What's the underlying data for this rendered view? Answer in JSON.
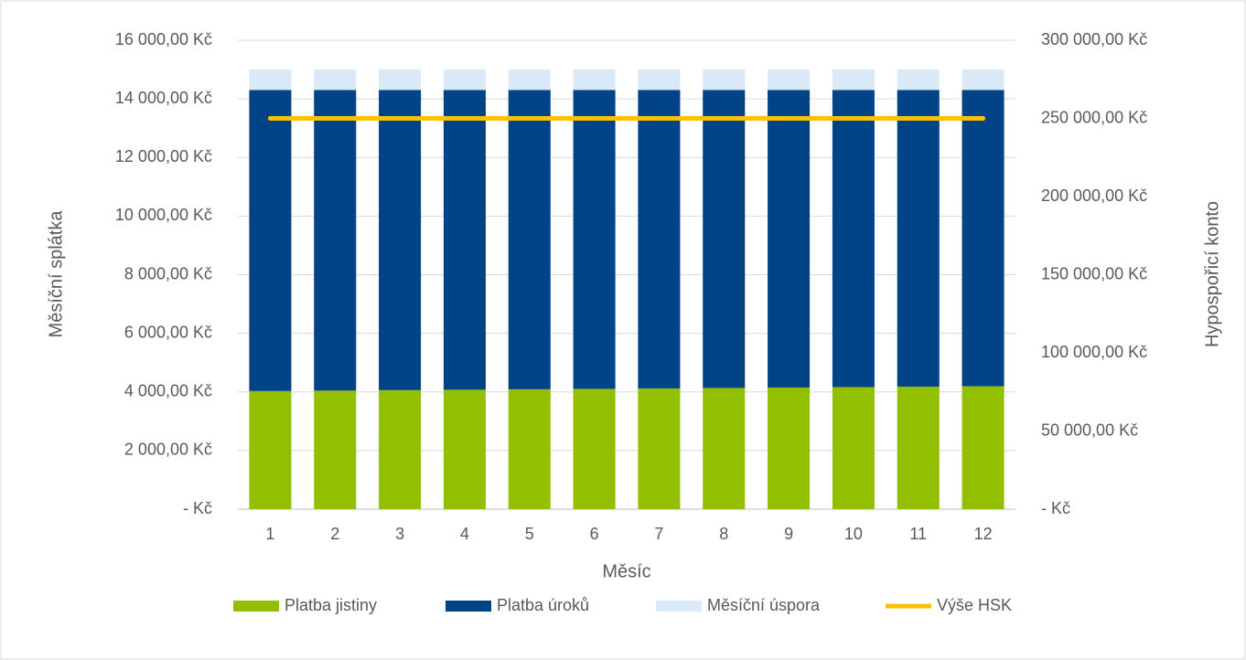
{
  "chart_data": {
    "type": "bar",
    "x_label": "Měsíc",
    "y_label": "Měsíční splátka",
    "y2_label": "Hypospořicí konto",
    "stacked": true,
    "grid": true,
    "legend": "bottom",
    "categories": [
      "1",
      "2",
      "3",
      "4",
      "5",
      "6",
      "7",
      "8",
      "9",
      "10",
      "11",
      "12"
    ],
    "series": [
      {
        "name": "Platba jistiny",
        "color": "#92c000",
        "values": [
          4030,
          4045,
          4060,
          4075,
          4090,
          4105,
          4120,
          4135,
          4150,
          4165,
          4180,
          4195
        ]
      },
      {
        "name": "Platba úroků",
        "color": "#004387",
        "values": [
          10270,
          10255,
          10240,
          10225,
          10210,
          10195,
          10180,
          10165,
          10150,
          10135,
          10120,
          10105
        ]
      },
      {
        "name": "Měsíční úspora",
        "color": "#dae9f8",
        "values": [
          700,
          700,
          700,
          700,
          700,
          700,
          700,
          700,
          700,
          700,
          700,
          700
        ]
      },
      {
        "name": "Výše HSK",
        "type": "line",
        "axis": "y2",
        "color": "#ffc000",
        "values": [
          250000,
          250000,
          250000,
          250000,
          250000,
          250000,
          250000,
          250000,
          250000,
          250000,
          250000,
          250000
        ]
      }
    ],
    "ylim": [
      0,
      16000
    ],
    "yticks": [
      {
        "value": 0,
        "label": "-   Kč"
      },
      {
        "value": 2000,
        "label": "2 000,00 Kč"
      },
      {
        "value": 4000,
        "label": "4 000,00 Kč"
      },
      {
        "value": 6000,
        "label": "6 000,00 Kč"
      },
      {
        "value": 8000,
        "label": "8 000,00 Kč"
      },
      {
        "value": 10000,
        "label": "10 000,00 Kč"
      },
      {
        "value": 12000,
        "label": "12 000,00 Kč"
      },
      {
        "value": 14000,
        "label": "14 000,00 Kč"
      },
      {
        "value": 16000,
        "label": "16 000,00 Kč"
      }
    ],
    "y2lim": [
      0,
      300000
    ],
    "y2ticks": [
      {
        "value": 0,
        "label": "-   Kč"
      },
      {
        "value": 50000,
        "label": "50 000,00 Kč"
      },
      {
        "value": 100000,
        "label": "100 000,00 Kč"
      },
      {
        "value": 150000,
        "label": "150 000,00 Kč"
      },
      {
        "value": 200000,
        "label": "200 000,00 Kč"
      },
      {
        "value": 250000,
        "label": "250 000,00 Kč"
      },
      {
        "value": 300000,
        "label": "300 000,00 Kč"
      }
    ]
  }
}
